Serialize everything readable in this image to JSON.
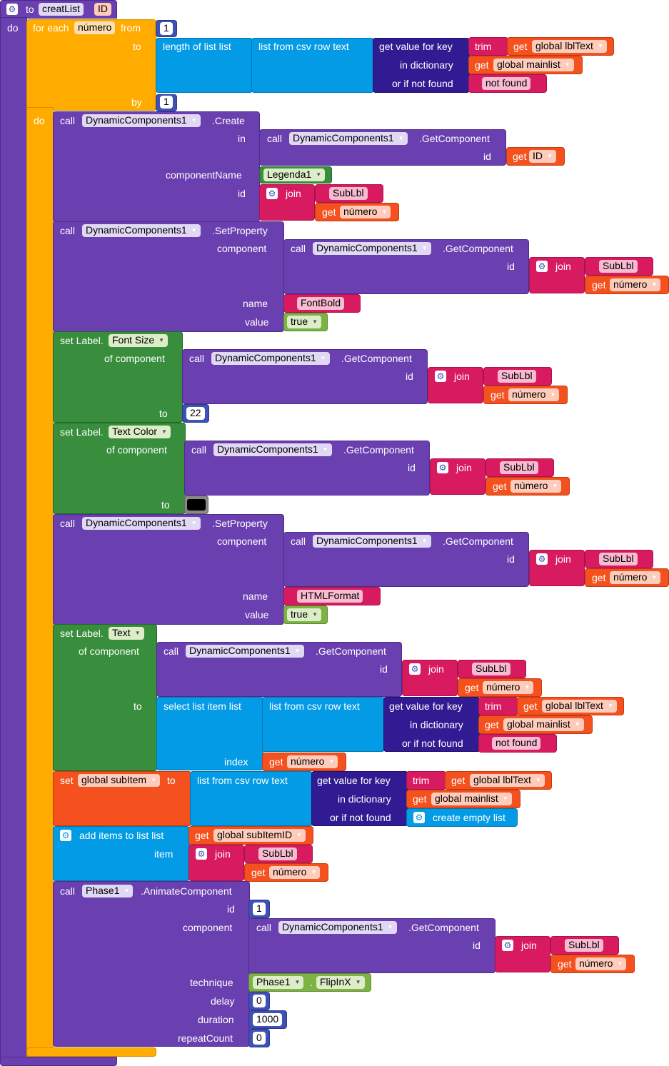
{
  "proc": {
    "to": "to",
    "name": "creatList",
    "param": "ID",
    "do": "do"
  },
  "loop": {
    "for_each": "for each",
    "var": "número",
    "from": "from",
    "to": "to",
    "by": "by",
    "do": "do",
    "from_val": "1",
    "by_val": "1"
  },
  "kw": {
    "call": "call",
    "in": "in",
    "id": "id",
    "get": "get",
    "join": "join",
    "trim": "trim",
    "set": "set",
    "to": "to",
    "component": "component",
    "name": "name",
    "value": "value",
    "of_component": "of component",
    "index": "index",
    "item": "item",
    "technique": "technique",
    "delay": "delay",
    "duration": "duration",
    "repeatCount": "repeatCount",
    "componentName": "componentName",
    "dot": "."
  },
  "text": {
    "length_of_list": "length of list  list",
    "list_from_csv_row": "list from csv row  text",
    "select_list_item": "select list item  list",
    "get_value_for_key": "get value for key",
    "in_dictionary": "in dictionary",
    "or_if_not_found": "or if not found",
    "not_found": "not found",
    "create_empty_list": "create empty list",
    "add_items": "add items to list   list"
  },
  "vars": {
    "lblText": "global lblText",
    "mainlist": "global mainlist",
    "id": "ID",
    "numero": "número",
    "subItem": "global subItem",
    "subItemID": "global subItemID"
  },
  "components": {
    "dyn": "DynamicComponents1",
    "legenda": "Legenda1",
    "phase": "Phase1"
  },
  "methods": {
    "create": ".Create",
    "getComponent": ".GetComponent",
    "setProperty": ".SetProperty",
    "animate": ".AnimateComponent"
  },
  "strings": {
    "sublbl": "SubLbl",
    "fontbold": "FontBold",
    "htmlformat": "HTMLFormat"
  },
  "labels": {
    "set_label": "set Label.",
    "font_size": "Font Size",
    "text_color": "Text Color",
    "text": "Text"
  },
  "values": {
    "true": "true",
    "font_size": "22",
    "anim_id": "1",
    "delay": "0",
    "duration": "1000",
    "repeat": "0"
  },
  "technique": {
    "phase": "Phase1",
    "flip": "FlipInX"
  },
  "colors": {
    "procedure": "#6a3fb0",
    "loop": "#ffab00",
    "list": "#039be5",
    "text": "#d81b60",
    "variable": "#f4511e",
    "component": "#388e3c",
    "logic": "#7cb342",
    "math": "#3f51b5",
    "dictionary": "#311b92"
  }
}
